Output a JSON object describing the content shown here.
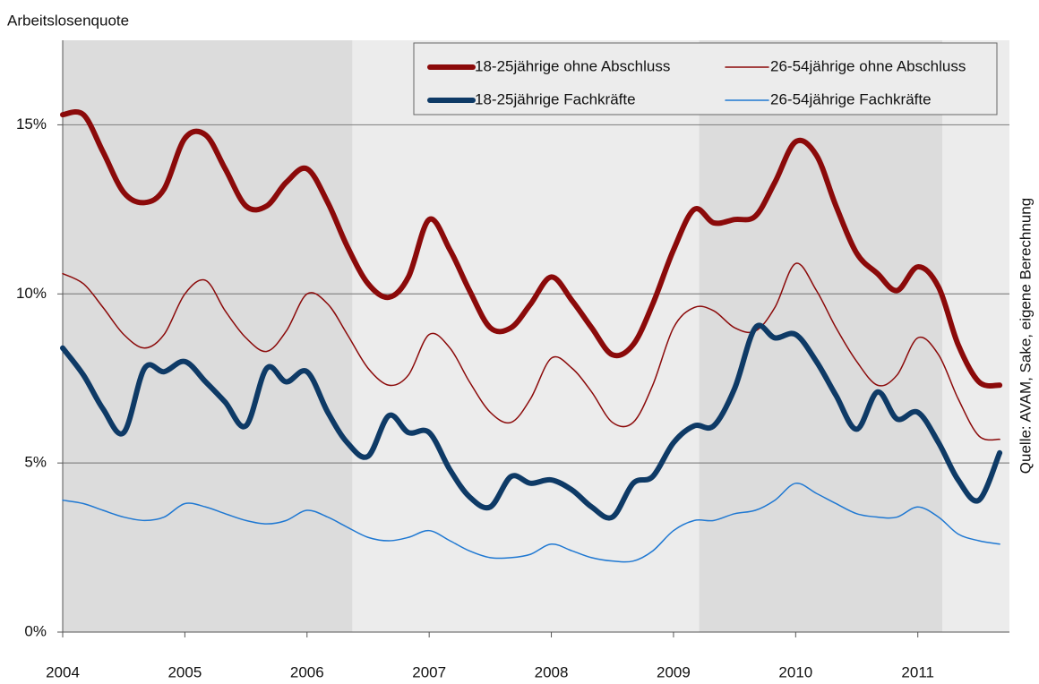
{
  "chart_data": {
    "type": "line",
    "y_label": "Arbeitslosenquote",
    "source": "Quelle: AVAM, Sake, eigene Berechnung",
    "x": [
      2004,
      2004.17,
      2004.33,
      2004.5,
      2004.67,
      2004.83,
      2005,
      2005.17,
      2005.33,
      2005.5,
      2005.67,
      2005.83,
      2006,
      2006.17,
      2006.33,
      2006.5,
      2006.67,
      2006.83,
      2007,
      2007.17,
      2007.33,
      2007.5,
      2007.67,
      2007.83,
      2008,
      2008.17,
      2008.33,
      2008.5,
      2008.67,
      2008.83,
      2009,
      2009.17,
      2009.33,
      2009.5,
      2009.67,
      2009.83,
      2010,
      2010.17,
      2010.33,
      2010.5,
      2010.67,
      2010.83,
      2011,
      2011.17,
      2011.33,
      2011.5,
      2011.67
    ],
    "series": [
      {
        "name": "18-25jährige ohne Abschluss",
        "color": "#8b0a0a",
        "width": 6,
        "values": [
          15.3,
          15.3,
          14.2,
          13.0,
          12.7,
          13.1,
          14.6,
          14.7,
          13.7,
          12.6,
          12.6,
          13.3,
          13.7,
          12.7,
          11.4,
          10.3,
          9.9,
          10.5,
          12.2,
          11.3,
          10.1,
          9.0,
          9.0,
          9.7,
          10.5,
          9.8,
          9.0,
          8.2,
          8.5,
          9.7,
          11.3,
          12.5,
          12.1,
          12.2,
          12.3,
          13.3,
          14.5,
          14.1,
          12.6,
          11.2,
          10.6,
          10.1,
          10.8,
          10.2,
          8.5,
          7.4,
          7.3
        ]
      },
      {
        "name": "26-54jährige ohne Abschluss",
        "color": "#8b0a0a",
        "width": 1.5,
        "values": [
          10.6,
          10.3,
          9.6,
          8.8,
          8.4,
          8.8,
          10.0,
          10.4,
          9.5,
          8.7,
          8.3,
          8.9,
          10.0,
          9.7,
          8.8,
          7.8,
          7.3,
          7.6,
          8.8,
          8.4,
          7.4,
          6.5,
          6.2,
          6.9,
          8.1,
          7.8,
          7.1,
          6.2,
          6.2,
          7.3,
          9.0,
          9.6,
          9.5,
          9.0,
          8.9,
          9.6,
          10.9,
          10.1,
          9.0,
          8.0,
          7.3,
          7.6,
          8.7,
          8.2,
          6.9,
          5.8,
          5.7
        ]
      },
      {
        "name": "18-25jährige Fachkräfte",
        "color": "#0e3a66",
        "width": 6,
        "values": [
          8.4,
          7.6,
          6.6,
          5.9,
          7.8,
          7.7,
          8.0,
          7.4,
          6.8,
          6.1,
          7.8,
          7.4,
          7.7,
          6.5,
          5.6,
          5.2,
          6.4,
          5.9,
          5.9,
          4.8,
          4.0,
          3.7,
          4.6,
          4.4,
          4.5,
          4.2,
          3.7,
          3.4,
          4.4,
          4.6,
          5.6,
          6.1,
          6.1,
          7.2,
          9.0,
          8.7,
          8.8,
          8.0,
          7.0,
          6.0,
          7.1,
          6.3,
          6.5,
          5.6,
          4.5,
          3.9,
          5.3
        ]
      },
      {
        "name": "26-54jährige Fachkräfte",
        "color": "#1f78d2",
        "width": 1.5,
        "values": [
          3.9,
          3.8,
          3.6,
          3.4,
          3.3,
          3.4,
          3.8,
          3.7,
          3.5,
          3.3,
          3.2,
          3.3,
          3.6,
          3.4,
          3.1,
          2.8,
          2.7,
          2.8,
          3.0,
          2.7,
          2.4,
          2.2,
          2.2,
          2.3,
          2.6,
          2.4,
          2.2,
          2.1,
          2.1,
          2.4,
          3.0,
          3.3,
          3.3,
          3.5,
          3.6,
          3.9,
          4.4,
          4.1,
          3.8,
          3.5,
          3.4,
          3.4,
          3.7,
          3.4,
          2.9,
          2.7,
          2.6
        ]
      }
    ],
    "shaded": [
      [
        2004,
        2006.37
      ],
      [
        2009.21,
        2011.2
      ]
    ],
    "shade_color": "#dcdcdc",
    "plot_color": "#ececec",
    "xlim": [
      2004,
      2011.75
    ],
    "ylim": [
      0,
      17.5
    ],
    "xticks": [
      2004,
      2005,
      2006,
      2007,
      2008,
      2009,
      2010,
      2011
    ],
    "yticks": [
      {
        "value": 0,
        "label": "0%"
      },
      {
        "value": 5,
        "label": "5%"
      },
      {
        "value": 10,
        "label": "10%"
      },
      {
        "value": 15,
        "label": "15%"
      }
    ],
    "grid": true
  }
}
